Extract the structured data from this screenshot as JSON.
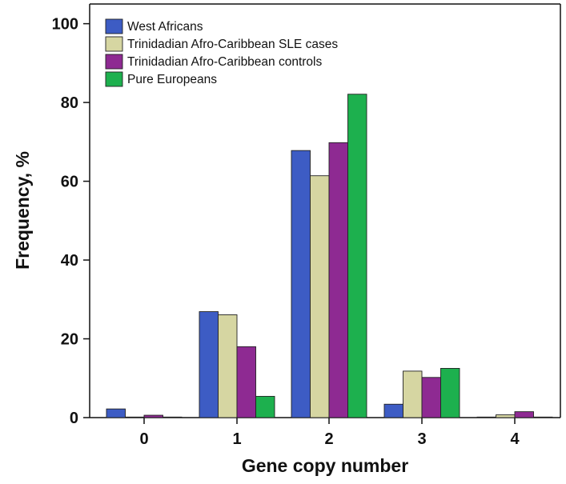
{
  "chart_data": {
    "type": "bar",
    "title": "",
    "xlabel": "Gene copy number",
    "ylabel": "Frequency, %",
    "categories": [
      "0",
      "1",
      "2",
      "3",
      "4"
    ],
    "ylim": [
      0,
      105
    ],
    "yticks": [
      0,
      20,
      40,
      60,
      80,
      100
    ],
    "grid": false,
    "legend_position": "top-left",
    "series": [
      {
        "name": "West Africans",
        "color": "#3d5cc4",
        "values": [
          2.2,
          26.9,
          67.8,
          3.4,
          0.0
        ]
      },
      {
        "name": "Trinidadian Afro-Caribbean SLE cases",
        "color": "#d6d6a2",
        "values": [
          0.0,
          26.1,
          61.4,
          11.8,
          0.7
        ]
      },
      {
        "name": "Trinidadian Afro-Caribbean controls",
        "color": "#8e2a92",
        "values": [
          0.6,
          18.0,
          69.8,
          10.2,
          1.5
        ]
      },
      {
        "name": "Pure Europeans",
        "color": "#1db04e",
        "values": [
          0.0,
          5.4,
          82.1,
          12.5,
          0.0
        ]
      }
    ]
  }
}
